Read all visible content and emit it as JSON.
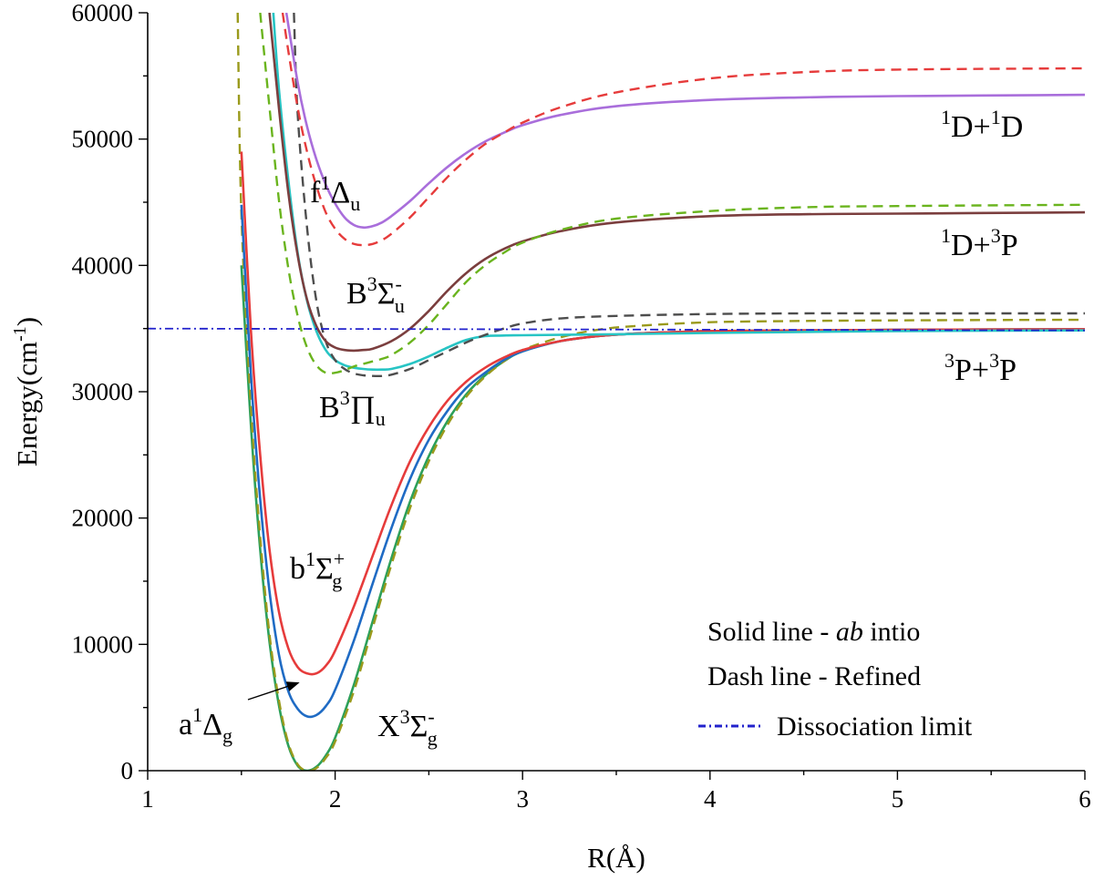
{
  "chart_data": {
    "type": "line",
    "title": "",
    "xlabel": "R(Å)",
    "ylabel": "Energy(cm",
    "ylabel_sup": "-1",
    "ylabel_close": ")",
    "xlim": [
      1,
      6
    ],
    "ylim": [
      0,
      60000
    ],
    "grid": false,
    "x_ticks": [
      1,
      2,
      3,
      4,
      5,
      6
    ],
    "y_ticks": [
      0,
      10000,
      20000,
      30000,
      40000,
      50000,
      60000
    ],
    "x_tick_labels": [
      "1",
      "2",
      "3",
      "4",
      "5",
      "6"
    ],
    "y_tick_labels": [
      "0",
      "10000",
      "20000",
      "30000",
      "40000",
      "50000",
      "60000"
    ],
    "series": [
      {
        "name": "X3Σg- ab initio",
        "style": "solid",
        "color": "#2ca05a",
        "x": [
          1.5,
          1.55,
          1.6,
          1.65,
          1.7,
          1.75,
          1.8,
          1.85,
          1.9,
          1.95,
          2.0,
          2.1,
          2.2,
          2.3,
          2.4,
          2.5,
          2.6,
          2.7,
          2.8,
          2.9,
          3.0,
          3.2,
          3.4,
          3.6,
          4.0,
          4.5,
          5.0,
          6.0
        ],
        "y": [
          40000,
          27500,
          17500,
          10200,
          5200,
          2000,
          400,
          0,
          300,
          1200,
          2600,
          6800,
          11800,
          16800,
          21300,
          24900,
          27700,
          29800,
          31300,
          32400,
          33200,
          34000,
          34400,
          34600,
          34800,
          34850,
          34900,
          34950
        ]
      },
      {
        "name": "X3Σg- refined",
        "style": "dashed",
        "color": "#9a9a1c",
        "x": [
          1.48,
          1.5,
          1.55,
          1.6,
          1.65,
          1.7,
          1.75,
          1.8,
          1.85,
          1.9,
          1.95,
          2.0,
          2.1,
          2.2,
          2.3,
          2.4,
          2.5,
          2.6,
          2.7,
          2.8,
          2.9,
          3.0,
          3.2,
          3.4,
          3.6,
          4.0,
          4.5,
          5.0,
          6.0
        ],
        "y": [
          60000,
          44000,
          29000,
          18500,
          10800,
          5600,
          2200,
          500,
          0,
          200,
          1000,
          2300,
          6300,
          11300,
          16300,
          20800,
          24500,
          27400,
          29600,
          31200,
          32400,
          33300,
          34300,
          34900,
          35200,
          35500,
          35600,
          35650,
          35700
        ]
      },
      {
        "name": "a1Δg ab initio",
        "style": "solid",
        "color": "#1f6bc4",
        "x": [
          1.5,
          1.55,
          1.6,
          1.65,
          1.7,
          1.75,
          1.8,
          1.85,
          1.9,
          1.95,
          2.0,
          2.1,
          2.2,
          2.3,
          2.4,
          2.5,
          2.6,
          2.7,
          2.8,
          2.9,
          3.0,
          3.2,
          3.4,
          3.6,
          4.0,
          4.5,
          5.0,
          6.0
        ],
        "y": [
          44800,
          31500,
          21500,
          14200,
          9200,
          6300,
          4900,
          4300,
          4400,
          5100,
          6400,
          10300,
          14800,
          19200,
          23100,
          26200,
          28500,
          30300,
          31500,
          32500,
          33200,
          34000,
          34400,
          34600,
          34800,
          34850,
          34900,
          34950
        ]
      },
      {
        "name": "b1Σg+ ab initio",
        "style": "solid",
        "color": "#e63b3b",
        "x": [
          1.5,
          1.55,
          1.6,
          1.65,
          1.7,
          1.75,
          1.8,
          1.85,
          1.9,
          1.95,
          2.0,
          2.1,
          2.2,
          2.3,
          2.4,
          2.5,
          2.6,
          2.7,
          2.8,
          2.9,
          3.0,
          3.2,
          3.4,
          3.6,
          4.0,
          4.5,
          5.0,
          6.0
        ],
        "y": [
          49000,
          35000,
          25000,
          17500,
          12600,
          9700,
          8200,
          7700,
          7700,
          8300,
          9500,
          13000,
          17000,
          21000,
          24500,
          27200,
          29300,
          30800,
          31900,
          32700,
          33300,
          34000,
          34400,
          34600,
          34800,
          34850,
          34900,
          34950
        ]
      },
      {
        "name": "B3Πu ab initio",
        "style": "solid",
        "color": "#27c4c4",
        "x": [
          1.67,
          1.7,
          1.75,
          1.8,
          1.85,
          1.9,
          1.95,
          2.0,
          2.05,
          2.1,
          2.15,
          2.2,
          2.25,
          2.3,
          2.4,
          2.5,
          2.6,
          2.7,
          2.8,
          2.9,
          3.0,
          3.5,
          4.0,
          5.0,
          6.0
        ],
        "y": [
          60000,
          54000,
          46800,
          41000,
          37200,
          34800,
          33300,
          32500,
          32100,
          31900,
          31800,
          31750,
          31750,
          31800,
          32200,
          32800,
          33500,
          34100,
          34400,
          34450,
          34470,
          34550,
          34650,
          34800,
          34850
        ]
      },
      {
        "name": "B3Πu refined",
        "style": "dashed",
        "color": "#4d4d4d",
        "x": [
          1.78,
          1.8,
          1.85,
          1.9,
          1.95,
          2.0,
          2.05,
          2.1,
          2.15,
          2.2,
          2.25,
          2.3,
          2.4,
          2.5,
          2.6,
          2.7,
          2.8,
          2.9,
          3.0,
          3.2,
          3.5,
          4.0,
          4.5,
          5.0,
          6.0
        ],
        "y": [
          60000,
          52000,
          43000,
          37200,
          34000,
          32500,
          31800,
          31450,
          31300,
          31250,
          31250,
          31350,
          31800,
          32500,
          33200,
          33900,
          34500,
          35000,
          35400,
          35800,
          36000,
          36150,
          36200,
          36200,
          36200
        ]
      },
      {
        "name": "B3Σu- ab initio",
        "style": "solid",
        "color": "#7b3e3e",
        "x": [
          1.65,
          1.7,
          1.75,
          1.8,
          1.85,
          1.9,
          1.95,
          2.0,
          2.05,
          2.1,
          2.15,
          2.2,
          2.3,
          2.4,
          2.5,
          2.6,
          2.7,
          2.8,
          2.9,
          3.0,
          3.2,
          3.5,
          4.0,
          4.5,
          5.0,
          6.0
        ],
        "y": [
          60000,
          52500,
          45800,
          40800,
          37300,
          35200,
          34000,
          33500,
          33300,
          33250,
          33300,
          33400,
          34000,
          35000,
          36400,
          38000,
          39400,
          40500,
          41300,
          41900,
          42700,
          43400,
          43900,
          44050,
          44100,
          44200
        ]
      },
      {
        "name": "B3Σu- refined",
        "style": "dashed",
        "color": "#6ab41e",
        "x": [
          1.6,
          1.65,
          1.7,
          1.75,
          1.8,
          1.85,
          1.9,
          1.95,
          2.0,
          2.05,
          2.1,
          2.15,
          2.2,
          2.25,
          2.3,
          2.4,
          2.5,
          2.6,
          2.7,
          2.8,
          2.9,
          3.0,
          3.2,
          3.5,
          4.0,
          4.5,
          5.0,
          6.0
        ],
        "y": [
          60000,
          52500,
          45200,
          39800,
          36000,
          33500,
          32100,
          31500,
          31500,
          31700,
          32000,
          32200,
          32400,
          32600,
          32900,
          33900,
          35300,
          37000,
          38700,
          40000,
          41000,
          41800,
          42800,
          43700,
          44300,
          44600,
          44700,
          44800
        ]
      },
      {
        "name": "f1Δu ab initio",
        "style": "solid",
        "color": "#a96edb",
        "x": [
          1.74,
          1.8,
          1.85,
          1.9,
          1.95,
          2.0,
          2.05,
          2.1,
          2.15,
          2.2,
          2.25,
          2.3,
          2.4,
          2.5,
          2.6,
          2.7,
          2.8,
          2.9,
          3.0,
          3.2,
          3.5,
          4.0,
          4.5,
          5.0,
          6.0
        ],
        "y": [
          60000,
          54500,
          51000,
          48400,
          46400,
          44900,
          43800,
          43200,
          43000,
          43100,
          43400,
          43900,
          45100,
          46500,
          47800,
          48900,
          49800,
          50500,
          51100,
          51900,
          52600,
          53100,
          53300,
          53400,
          53500
        ]
      },
      {
        "name": "f1Δu refined",
        "style": "dashed",
        "color": "#e63b3b",
        "x": [
          1.72,
          1.75,
          1.8,
          1.85,
          1.9,
          1.95,
          2.0,
          2.05,
          2.1,
          2.15,
          2.2,
          2.25,
          2.3,
          2.4,
          2.5,
          2.6,
          2.7,
          2.8,
          2.9,
          3.0,
          3.2,
          3.5,
          4.0,
          4.5,
          5.0,
          6.0
        ],
        "y": [
          60000,
          57000,
          52500,
          49000,
          46300,
          44200,
          42900,
          42100,
          41700,
          41600,
          41700,
          42000,
          42500,
          43800,
          45400,
          47000,
          48400,
          49600,
          50500,
          51300,
          52500,
          53700,
          54800,
          55300,
          55500,
          55600
        ]
      },
      {
        "name": "Dissociation limit",
        "style": "dashdot",
        "color": "#2222cc",
        "x": [
          1.0,
          6.0
        ],
        "y": [
          35000,
          34850
        ]
      }
    ],
    "annotations": {
      "f1du": {
        "base": "f",
        "sup": "1",
        "greek": "Δ",
        "sub": "u"
      },
      "b3su": {
        "base": "B",
        "sup": "3",
        "greek": "Σ",
        "sub": "u",
        "sup2": "-"
      },
      "b3pu": {
        "base": "B",
        "sup": "3",
        "greek": "∏",
        "sub": "u"
      },
      "b1sg": {
        "base": "b",
        "sup": "1",
        "greek": "Σ",
        "sub": "g",
        "sup2": "+"
      },
      "a1dg": {
        "base": "a",
        "sup": "1",
        "greek": "Δ",
        "sub": "g"
      },
      "x3sg": {
        "base": "X",
        "sup": "3",
        "greek": "Σ",
        "sub": "g",
        "sup2": "-"
      },
      "lim1": {
        "sup_a": "1",
        "a": "D+",
        "sup_b": "1",
        "b": "D"
      },
      "lim2": {
        "sup_a": "1",
        "a": "D+",
        "sup_b": "3",
        "b": "P"
      },
      "lim3": {
        "sup_a": "3",
        "a": "P+",
        "sup_b": "3",
        "b": "P"
      }
    },
    "legend": {
      "placement": "bottom-right",
      "solid_prefix": "Solid line - ",
      "solid_italic": "ab",
      "solid_suffix": " intio",
      "dash": "Dash line - Refined",
      "limit": "Dissociation limit"
    }
  }
}
